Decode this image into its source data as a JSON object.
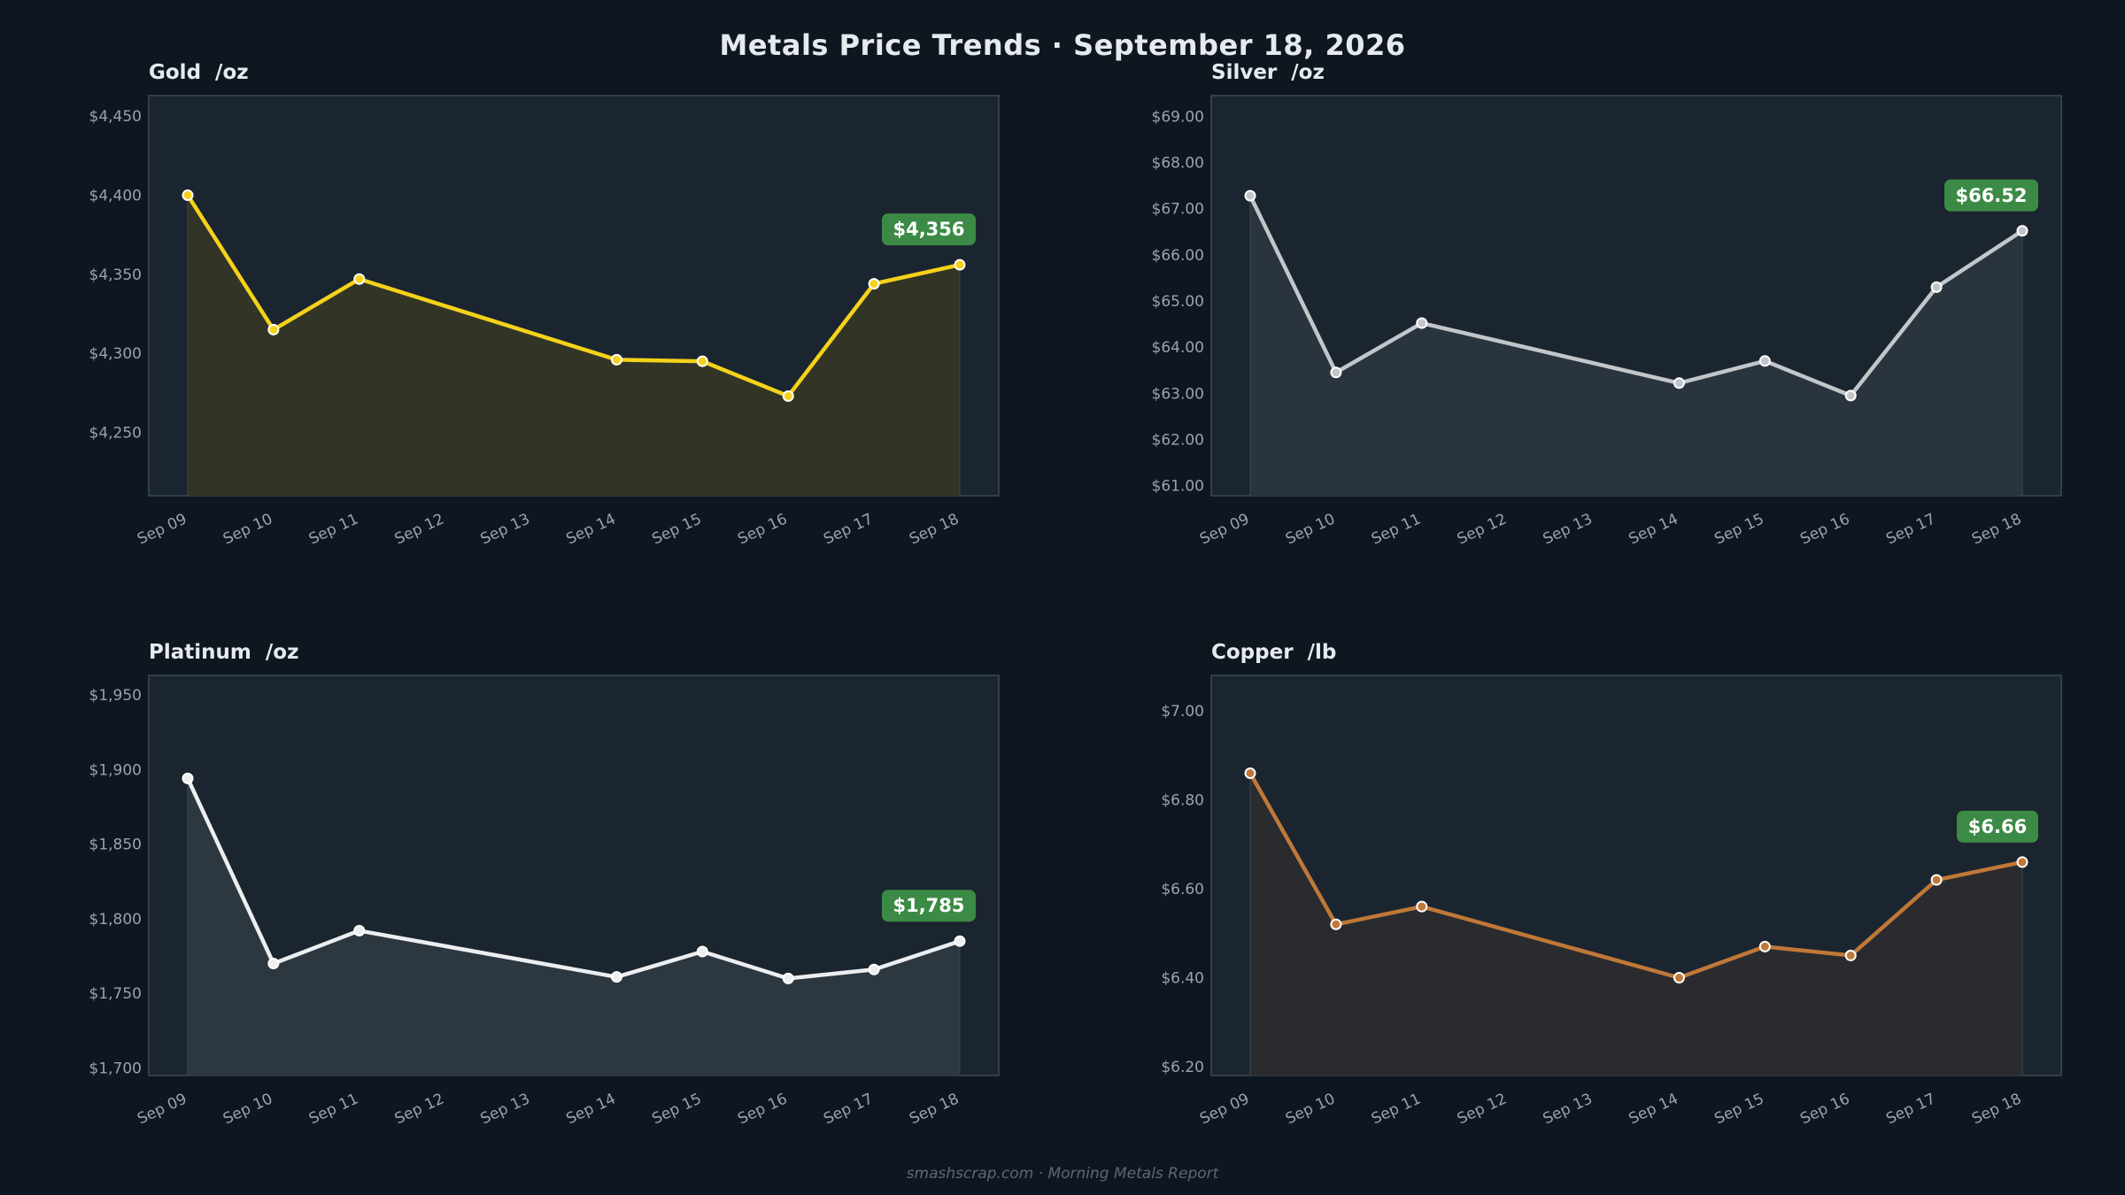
{
  "header": {
    "title": "Metals Price Trends  ·  September 18, 2026"
  },
  "footer": {
    "text": "smashscrap.com  ·  Morning Metals Report"
  },
  "colors": {
    "background": "#0e1720",
    "plot_background": "#1b252f",
    "plot_border": "#3a4a55",
    "badge": "#3b8a45"
  },
  "chart_data": [
    {
      "type": "area",
      "title": "Gold  /oz",
      "color": "#f5d21a",
      "fill": "#323526",
      "categories": [
        "Sep 09",
        "Sep 10",
        "Sep 11",
        "Sep 12",
        "Sep 13",
        "Sep 14",
        "Sep 15",
        "Sep 16",
        "Sep 17",
        "Sep 18"
      ],
      "x": [
        "Sep 09",
        "Sep 10",
        "Sep 11",
        "Sep 14",
        "Sep 15",
        "Sep 16",
        "Sep 17",
        "Sep 18"
      ],
      "values": [
        4400,
        4315,
        4347,
        4296,
        4295,
        4273,
        4344,
        4356
      ],
      "ylim": [
        4210,
        4463
      ],
      "yticks": [
        4250,
        4300,
        4350,
        4400,
        4450
      ],
      "ytick_labels": [
        "$4,250",
        "$4,300",
        "$4,350",
        "$4,400",
        "$4,450"
      ],
      "badge": "$4,356",
      "grid": false
    },
    {
      "type": "area",
      "title": "Silver  /oz",
      "color": "#c2c6ca",
      "fill": "#29343f",
      "categories": [
        "Sep 09",
        "Sep 10",
        "Sep 11",
        "Sep 12",
        "Sep 13",
        "Sep 14",
        "Sep 15",
        "Sep 16",
        "Sep 17",
        "Sep 18"
      ],
      "x": [
        "Sep 09",
        "Sep 10",
        "Sep 11",
        "Sep 14",
        "Sep 15",
        "Sep 16",
        "Sep 17",
        "Sep 18"
      ],
      "values": [
        67.28,
        63.45,
        64.52,
        63.22,
        63.7,
        62.95,
        65.3,
        66.52
      ],
      "ylim": [
        60.78,
        69.45
      ],
      "yticks": [
        61,
        62,
        63,
        64,
        65,
        66,
        67,
        68,
        69
      ],
      "ytick_labels": [
        "$61.00",
        "$62.00",
        "$63.00",
        "$64.00",
        "$65.00",
        "$66.00",
        "$67.00",
        "$68.00",
        "$69.00"
      ],
      "badge": "$66.52",
      "grid": false
    },
    {
      "type": "area",
      "title": "Platinum  /oz",
      "color": "#eceef0",
      "fill": "#2c3740",
      "categories": [
        "Sep 09",
        "Sep 10",
        "Sep 11",
        "Sep 12",
        "Sep 13",
        "Sep 14",
        "Sep 15",
        "Sep 16",
        "Sep 17",
        "Sep 18"
      ],
      "x": [
        "Sep 09",
        "Sep 10",
        "Sep 11",
        "Sep 14",
        "Sep 15",
        "Sep 16",
        "Sep 17",
        "Sep 18"
      ],
      "values": [
        1894,
        1770,
        1792,
        1761,
        1778,
        1760,
        1766,
        1785
      ],
      "ylim": [
        1695,
        1963
      ],
      "yticks": [
        1700,
        1750,
        1800,
        1850,
        1900,
        1950
      ],
      "ytick_labels": [
        "$1,700",
        "$1,750",
        "$1,800",
        "$1,850",
        "$1,900",
        "$1,950"
      ],
      "badge": "$1,785",
      "grid": false
    },
    {
      "type": "area",
      "title": "Copper  /lb",
      "color": "#c07838",
      "fill": "#2a2b2e",
      "categories": [
        "Sep 09",
        "Sep 10",
        "Sep 11",
        "Sep 12",
        "Sep 13",
        "Sep 14",
        "Sep 15",
        "Sep 16",
        "Sep 17",
        "Sep 18"
      ],
      "x": [
        "Sep 09",
        "Sep 10",
        "Sep 11",
        "Sep 14",
        "Sep 15",
        "Sep 16",
        "Sep 17",
        "Sep 18"
      ],
      "values": [
        6.86,
        6.52,
        6.56,
        6.4,
        6.47,
        6.45,
        6.62,
        6.66
      ],
      "ylim": [
        6.18,
        7.08
      ],
      "yticks": [
        6.2,
        6.4,
        6.6,
        6.8,
        7.0
      ],
      "ytick_labels": [
        "$6.20",
        "$6.40",
        "$6.60",
        "$6.80",
        "$7.00"
      ],
      "badge": "$6.66",
      "grid": false
    }
  ]
}
